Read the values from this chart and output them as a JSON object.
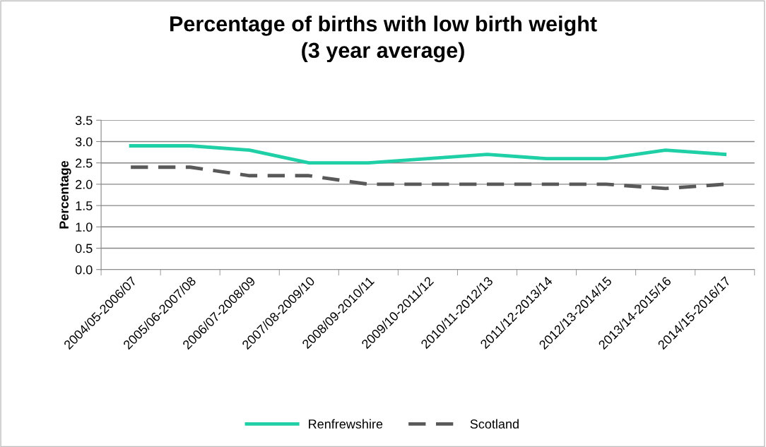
{
  "chart_data": {
    "type": "line",
    "title": "Percentage of births with low birth weight\n(3 year average)",
    "ylabel": "Percentage",
    "categories": [
      "2004/05-2006/07",
      "2005/06-2007/08",
      "2006/07-2008/09",
      "2007/08-2009/10",
      "2008/09-2010/11",
      "2009/10-2011/12",
      "2010/11-2012/13",
      "2011/12-2013/14",
      "2012/13-2014/15",
      "2013/14-2015/16",
      "2014/15-2016/17"
    ],
    "series": [
      {
        "name": "Renfrewshire",
        "color": "#1fcfa6",
        "line_style": "solid",
        "values": [
          2.9,
          2.9,
          2.8,
          2.5,
          2.5,
          2.6,
          2.7,
          2.6,
          2.6,
          2.8,
          2.7
        ]
      },
      {
        "name": "Scotland",
        "color": "#595959",
        "line_style": "dashed",
        "values": [
          2.4,
          2.4,
          2.2,
          2.2,
          2.0,
          2.0,
          2.0,
          2.0,
          2.0,
          1.9,
          2.0
        ]
      }
    ],
    "ylim": [
      0,
      3.5
    ],
    "yticks": [
      {
        "value": 0,
        "label": "0.0"
      },
      {
        "value": 0.5,
        "label": "0.5"
      },
      {
        "value": 1,
        "label": "1.0"
      },
      {
        "value": 1.5,
        "label": "1.5"
      },
      {
        "value": 2,
        "label": "2.0"
      },
      {
        "value": 2.5,
        "label": "2.5"
      },
      {
        "value": 3,
        "label": "3.0"
      },
      {
        "value": 3.5,
        "label": "3.5"
      }
    ],
    "grid": "y",
    "legend": "bottom",
    "marker": "none"
  }
}
